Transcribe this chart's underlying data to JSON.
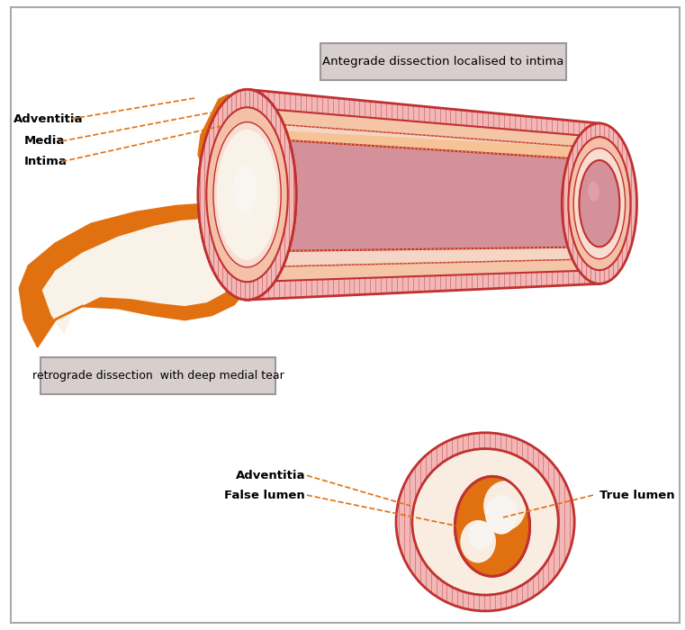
{
  "bg_color": "#ffffff",
  "title_box1": "Antegrade dissection localised to intima",
  "title_box2": "retrograde dissection  with deep medial tear",
  "label_adventitia": "Adventitia",
  "label_media": "Media",
  "label_intima": "Intima",
  "label_adventitia2": "Adventitia",
  "label_false_lumen": "False lumen",
  "label_true_lumen": "True lumen",
  "color_adventitia_fill": "#f2b8b8",
  "color_media_fill": "#f5c8a0",
  "color_body_fill": "#f5c5a8",
  "color_lumen_fill": "#d49090",
  "color_inner_lumen_fill": "#f0e0d8",
  "color_orange": "#e07010",
  "color_orange_light": "#f5b878",
  "color_cream": "#f8f0e5",
  "color_red_border": "#c03030",
  "color_dashed_line": "#e07010",
  "color_box_bg": "#d8cece",
  "color_box_border": "#999999"
}
